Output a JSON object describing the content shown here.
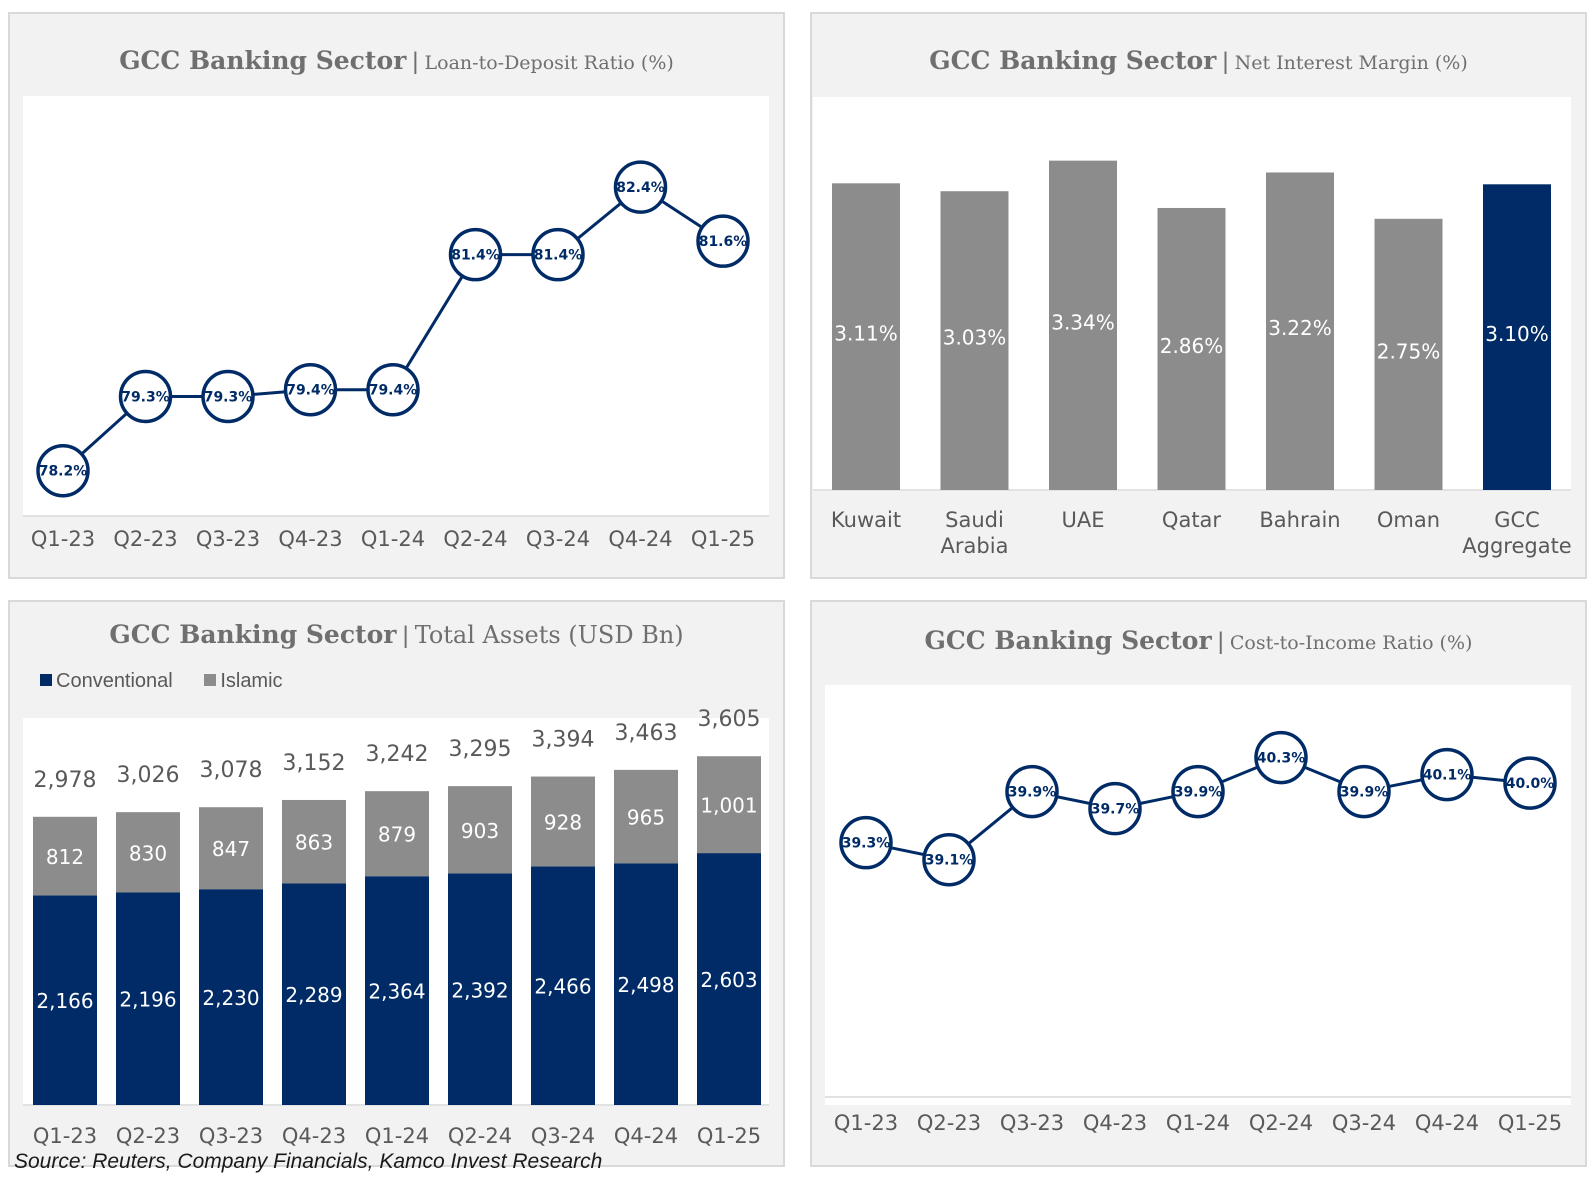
{
  "colors": {
    "navy": "#002b66",
    "gray": "#8c8c8c",
    "axis_text": "#595959"
  },
  "chart_data": [
    {
      "id": "ldr",
      "type": "line",
      "title_bold": "GCC Banking Sector",
      "title_sep": "|",
      "subtitle": "Loan-to-Deposit Ratio (%)",
      "categories": [
        "Q1-23",
        "Q2-23",
        "Q3-23",
        "Q4-23",
        "Q1-24",
        "Q2-24",
        "Q3-24",
        "Q4-24",
        "Q1-25"
      ],
      "values": [
        78.2,
        79.3,
        79.3,
        79.4,
        79.4,
        81.4,
        81.4,
        82.4,
        81.6
      ],
      "labels": [
        "78.2%",
        "79.3%",
        "79.3%",
        "79.4%",
        "79.4%",
        "81.4%",
        "81.4%",
        "82.4%",
        "81.6%"
      ],
      "ylim": [
        77.9,
        82.95
      ]
    },
    {
      "id": "nim",
      "type": "bar",
      "title_bold": "GCC Banking Sector",
      "title_sep": "|",
      "subtitle": "Net Interest Margin (%)",
      "categories": [
        [
          "Kuwait"
        ],
        [
          "Saudi",
          "Arabia"
        ],
        [
          "UAE"
        ],
        [
          "Qatar"
        ],
        [
          "Bahrain"
        ],
        [
          "Oman"
        ],
        [
          "GCC",
          "Aggregate"
        ]
      ],
      "values": [
        3.11,
        3.03,
        3.34,
        2.86,
        3.22,
        2.75,
        3.1
      ],
      "labels": [
        "3.11%",
        "3.03%",
        "3.34%",
        "2.86%",
        "3.22%",
        "2.75%",
        "3.10%"
      ],
      "highlight_index": 6,
      "ylim": [
        0,
        3.6
      ]
    },
    {
      "id": "assets",
      "type": "bar",
      "stacked": true,
      "title_bold": "GCC Banking Sector",
      "title_sep": "|",
      "subtitle": "Total Assets (USD Bn)",
      "legend": [
        "Conventional",
        "Islamic"
      ],
      "categories": [
        "Q1-23",
        "Q2-23",
        "Q3-23",
        "Q4-23",
        "Q1-24",
        "Q2-24",
        "Q3-24",
        "Q4-24",
        "Q1-25"
      ],
      "series": [
        {
          "name": "Conventional",
          "values": [
            2166,
            2196,
            2230,
            2289,
            2364,
            2392,
            2466,
            2498,
            2603
          ],
          "labels": [
            "2,166",
            "2,196",
            "2,230",
            "2,289",
            "2,364",
            "2,392",
            "2,466",
            "2,498",
            "2,603"
          ]
        },
        {
          "name": "Islamic",
          "values": [
            812,
            830,
            847,
            863,
            879,
            903,
            928,
            965,
            1001
          ],
          "labels": [
            "812",
            "830",
            "847",
            "863",
            "879",
            "903",
            "928",
            "965",
            "1,001"
          ]
        }
      ],
      "totals": [
        "2,978",
        "3,026",
        "3,078",
        "3,152",
        "3,242",
        "3,295",
        "3,394",
        "3,463",
        "3,605"
      ],
      "ylim": [
        0,
        3999
      ]
    },
    {
      "id": "cir",
      "type": "line",
      "title_bold": "GCC Banking Sector",
      "title_sep": "|",
      "subtitle": "Cost-to-Income Ratio (%)",
      "categories": [
        "Q1-23",
        "Q2-23",
        "Q3-23",
        "Q4-23",
        "Q1-24",
        "Q2-24",
        "Q3-24",
        "Q4-24",
        "Q1-25"
      ],
      "values": [
        39.3,
        39.1,
        39.9,
        39.7,
        39.9,
        40.3,
        39.9,
        40.1,
        40.0
      ],
      "labels": [
        "39.3%",
        "39.1%",
        "39.9%",
        "39.7%",
        "39.9%",
        "40.3%",
        "39.9%",
        "40.1%",
        "40.0%"
      ],
      "ylim": [
        38.18,
        40.53
      ]
    }
  ],
  "source": "Source: Reuters, Company Financials, Kamco Invest Research"
}
